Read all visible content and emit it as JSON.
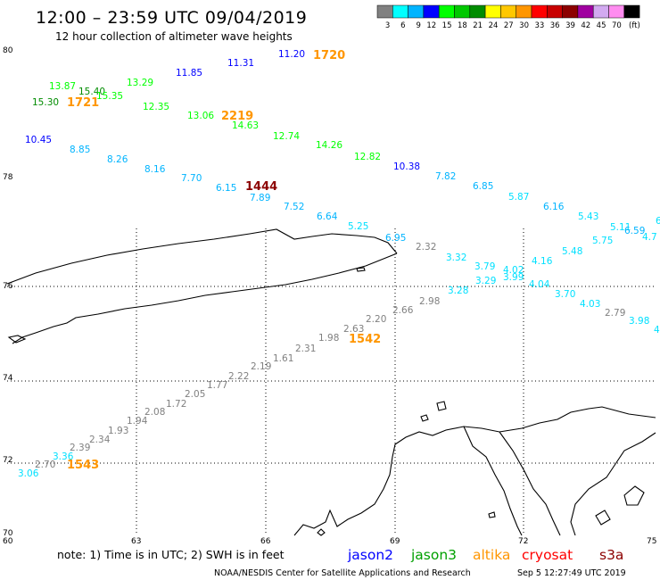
{
  "header": {
    "title": "12:00 – 23:59 UTC 09/04/2019",
    "subtitle": "12 hour collection of altimeter wave heights"
  },
  "legend": {
    "unit": "(ft)",
    "bins": [
      {
        "color": "#808080",
        "label": "3"
      },
      {
        "color": "#00ffff",
        "label": "6"
      },
      {
        "color": "#00b4ff",
        "label": "9"
      },
      {
        "color": "#0000ff",
        "label": "12"
      },
      {
        "color": "#00ff00",
        "label": "15"
      },
      {
        "color": "#00c800",
        "label": "18"
      },
      {
        "color": "#008c00",
        "label": "21"
      },
      {
        "color": "#ffff00",
        "label": "24"
      },
      {
        "color": "#ffc800",
        "label": "27"
      },
      {
        "color": "#ff9600",
        "label": "30"
      },
      {
        "color": "#ff0000",
        "label": "33"
      },
      {
        "color": "#c80000",
        "label": "36"
      },
      {
        "color": "#8c0000",
        "label": "39"
      },
      {
        "color": "#a000a0",
        "label": "42"
      },
      {
        "color": "#d2aaf0",
        "label": "45"
      },
      {
        "color": "#ff8cf0",
        "label": "70"
      },
      {
        "color": "#000000",
        "label": ""
      }
    ]
  },
  "axes": {
    "lat_ticks": [
      "80",
      "78",
      "74",
      "72",
      "70"
    ],
    "lon_ticks": [
      "60",
      "63",
      "66",
      "69",
      "72",
      "75"
    ],
    "lat_mid_tick": "76"
  },
  "observations": [
    {
      "t": "11.20",
      "c": "#0000ff"
    },
    {
      "t": "11.31",
      "c": "#0000ff"
    },
    {
      "t": "11.85",
      "c": "#0000ff"
    },
    {
      "t": "13.87",
      "c": "#00ff00"
    },
    {
      "t": "15.40",
      "c": "#008c00"
    },
    {
      "t": "13.29",
      "c": "#00ff00"
    },
    {
      "t": "15.35",
      "c": "#00ff00"
    },
    {
      "t": "15.30",
      "c": "#008c00"
    },
    {
      "t": "12.35",
      "c": "#00ff00"
    },
    {
      "t": "13.06",
      "c": "#00ff00"
    },
    {
      "t": "14.63",
      "c": "#00ff00"
    },
    {
      "t": "12.74",
      "c": "#00ff00"
    },
    {
      "t": "14.26",
      "c": "#00ff00"
    },
    {
      "t": "12.82",
      "c": "#00ff00"
    },
    {
      "t": "10.38",
      "c": "#0000ff"
    },
    {
      "t": "10.45",
      "c": "#0000ff"
    },
    {
      "t": "8.85",
      "c": "#00b4ff"
    },
    {
      "t": "8.26",
      "c": "#00b4ff"
    },
    {
      "t": "8.16",
      "c": "#00b4ff"
    },
    {
      "t": "7.70",
      "c": "#00b4ff"
    },
    {
      "t": "6.15",
      "c": "#00b4ff"
    },
    {
      "t": "7.89",
      "c": "#00b4ff"
    },
    {
      "t": "7.52",
      "c": "#00b4ff"
    },
    {
      "t": "6.64",
      "c": "#00b4ff"
    },
    {
      "t": "5.25",
      "c": "#00e0ff"
    },
    {
      "t": "6.95",
      "c": "#00b4ff"
    },
    {
      "t": "7.82",
      "c": "#00b4ff"
    },
    {
      "t": "6.85",
      "c": "#00b4ff"
    },
    {
      "t": "5.87",
      "c": "#00e0ff"
    },
    {
      "t": "6.16",
      "c": "#00b4ff"
    },
    {
      "t": "5.43",
      "c": "#00e0ff"
    },
    {
      "t": "5.11",
      "c": "#00e0ff"
    },
    {
      "t": "6",
      "c": "#00e0ff"
    },
    {
      "t": "6.59",
      "c": "#00b4ff"
    },
    {
      "t": "4.7",
      "c": "#00e0ff"
    },
    {
      "t": "5.75",
      "c": "#00e0ff"
    },
    {
      "t": "5.48",
      "c": "#00e0ff"
    },
    {
      "t": "4.16",
      "c": "#00e0ff"
    },
    {
      "t": "3.32",
      "c": "#00e0ff"
    },
    {
      "t": "3.79",
      "c": "#00e0ff"
    },
    {
      "t": "4.02",
      "c": "#00e0ff"
    },
    {
      "t": "3.99",
      "c": "#00e0ff"
    },
    {
      "t": "3.29",
      "c": "#00e0ff"
    },
    {
      "t": "4.04",
      "c": "#00e0ff"
    },
    {
      "t": "3.28",
      "c": "#00e0ff"
    },
    {
      "t": "3.70",
      "c": "#00e0ff"
    },
    {
      "t": "4.03",
      "c": "#00e0ff"
    },
    {
      "t": "3.98",
      "c": "#00e0ff"
    },
    {
      "t": "4",
      "c": "#00e0ff"
    },
    {
      "t": "2.79",
      "c": "#808080"
    },
    {
      "t": "2.32",
      "c": "#808080"
    },
    {
      "t": "2.98",
      "c": "#808080"
    },
    {
      "t": "2.66",
      "c": "#808080"
    },
    {
      "t": "2.20",
      "c": "#808080"
    },
    {
      "t": "2.63",
      "c": "#808080"
    },
    {
      "t": "1.98",
      "c": "#808080"
    },
    {
      "t": "2.31",
      "c": "#808080"
    },
    {
      "t": "1.61",
      "c": "#808080"
    },
    {
      "t": "2.19",
      "c": "#808080"
    },
    {
      "t": "2.22",
      "c": "#808080"
    },
    {
      "t": "1.77",
      "c": "#808080"
    },
    {
      "t": "2.05",
      "c": "#808080"
    },
    {
      "t": "1.72",
      "c": "#808080"
    },
    {
      "t": "2.08",
      "c": "#808080"
    },
    {
      "t": "1.94",
      "c": "#808080"
    },
    {
      "t": "1.93",
      "c": "#808080"
    },
    {
      "t": "2.34",
      "c": "#808080"
    },
    {
      "t": "2.39",
      "c": "#808080"
    },
    {
      "t": "3.36",
      "c": "#00e0ff"
    },
    {
      "t": "2.70",
      "c": "#808080"
    },
    {
      "t": "3.06",
      "c": "#00e0ff"
    }
  ],
  "orbit_labels": [
    {
      "t": "1720",
      "c": "#ff9600"
    },
    {
      "t": "1721",
      "c": "#ff9600"
    },
    {
      "t": "2219",
      "c": "#ff9600"
    },
    {
      "t": "1444",
      "c": "#8c0000"
    },
    {
      "t": "1542",
      "c": "#ff9600"
    },
    {
      "t": "1543",
      "c": "#ff9600"
    }
  ],
  "note": "note:  1) Time is in UTC; 2) SWH is in feet",
  "satellites": [
    {
      "name": "jason2",
      "color": "#0000ff"
    },
    {
      "name": "jason3",
      "color": "#00a000"
    },
    {
      "name": "altika",
      "color": "#ff9600"
    },
    {
      "name": "cryosat",
      "color": "#ff0000"
    },
    {
      "name": "s3a",
      "color": "#8c0000"
    }
  ],
  "footer": {
    "agency": "NOAA/NESDIS Center for Satellite Applications and Research",
    "timestamp": "Sep  5 12:27:49 UTC 2019"
  }
}
